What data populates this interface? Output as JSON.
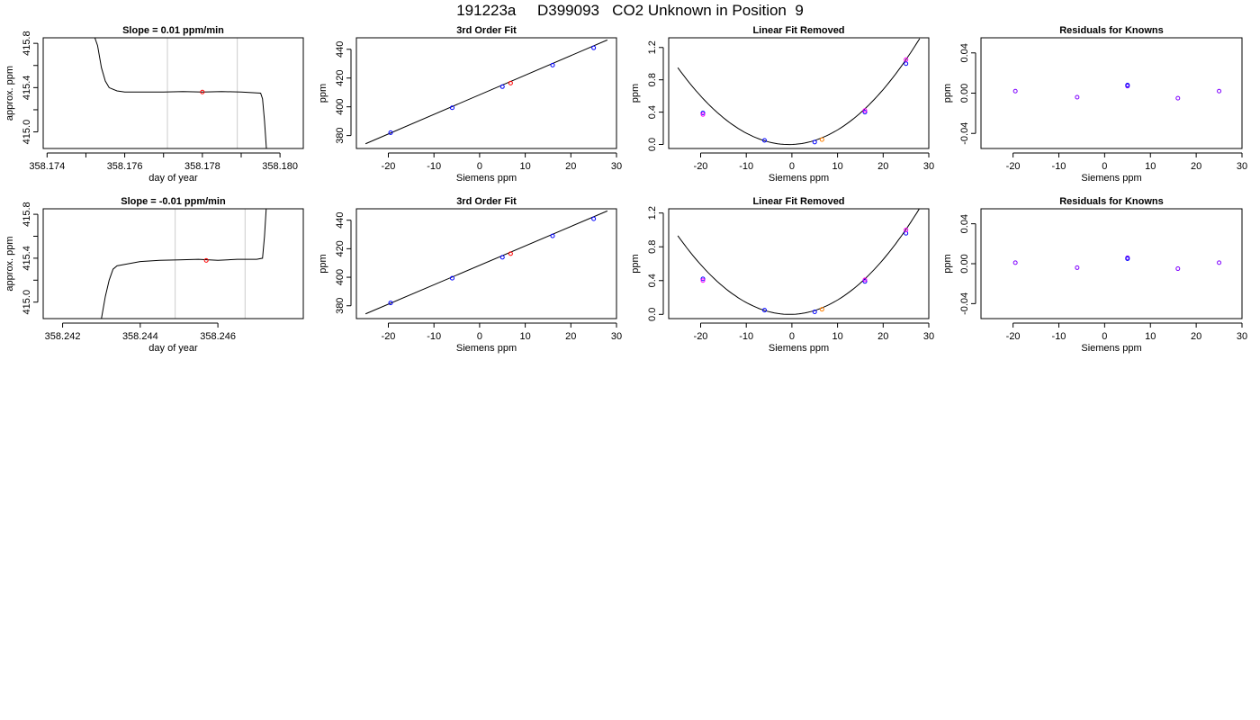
{
  "page": {
    "title": "191223a     D399093   CO2 Unknown in Position  9"
  },
  "chart_data": [
    {
      "type": "line",
      "title": "Slope =  0.01  ppm/min",
      "xlabel": "day of year",
      "ylabel": "approx. ppm",
      "xlim": [
        358.1739,
        358.1806
      ],
      "ylim": [
        414.85,
        415.85
      ],
      "xticks": [
        358.174,
        358.175,
        358.176,
        358.177,
        358.178,
        358.179,
        358.18
      ],
      "xtick_labels": [
        "358.174",
        "",
        "358.176",
        "",
        "358.178",
        "",
        "358.180"
      ],
      "yticks": [
        415.0,
        415.2,
        415.4,
        415.6,
        415.8
      ],
      "ytick_labels": [
        "415.0",
        "",
        "415.4",
        "",
        "415.8"
      ],
      "vlines": [
        358.1771,
        358.1789
      ],
      "series": [
        {
          "values": [
            [
              358.1752,
              415.88
            ],
            [
              358.1753,
              415.78
            ],
            [
              358.1754,
              415.58
            ],
            [
              358.1755,
              415.46
            ],
            [
              358.1756,
              415.4
            ],
            [
              358.1758,
              415.37
            ],
            [
              358.176,
              415.36
            ],
            [
              358.1765,
              415.36
            ],
            [
              358.177,
              415.36
            ],
            [
              358.1775,
              415.365
            ],
            [
              358.178,
              415.36
            ],
            [
              358.1785,
              415.365
            ],
            [
              358.179,
              415.36
            ],
            [
              358.1795,
              415.35
            ],
            [
              358.17955,
              415.3
            ],
            [
              358.1796,
              415.1
            ],
            [
              358.17965,
              414.85
            ]
          ]
        }
      ],
      "points": [
        {
          "x": 358.178,
          "y": 415.36,
          "color": "#ff0000"
        }
      ]
    },
    {
      "type": "scatter",
      "title": "3rd Order Fit",
      "xlabel": "Siemens ppm",
      "ylabel": "ppm",
      "xlim": [
        -27,
        30
      ],
      "ylim": [
        371,
        448
      ],
      "xticks": [
        -20,
        -10,
        0,
        10,
        20,
        30
      ],
      "xtick_labels": [
        "-20",
        "-10",
        "0",
        "10",
        "20",
        "30"
      ],
      "yticks": [
        380,
        400,
        420,
        440
      ],
      "ytick_labels": [
        "380",
        "400",
        "420",
        "440"
      ],
      "fit_line": [
        [
          -25,
          374.3
        ],
        [
          28,
          446.5
        ]
      ],
      "points": [
        {
          "x": -19.5,
          "y": 382,
          "color": "#0000ff"
        },
        {
          "x": -6,
          "y": 399.3,
          "color": "#0000ff"
        },
        {
          "x": 5,
          "y": 414,
          "color": "#0000ff"
        },
        {
          "x": 16,
          "y": 429,
          "color": "#0000ff"
        },
        {
          "x": 25,
          "y": 441,
          "color": "#0000ff"
        },
        {
          "x": 6.8,
          "y": 416.5,
          "color": "#ff0000"
        }
      ]
    },
    {
      "type": "scatter",
      "title": "Linear Fit Removed",
      "xlabel": "Siemens ppm",
      "ylabel": "ppm",
      "xlim": [
        -27,
        30
      ],
      "ylim": [
        -0.05,
        1.32
      ],
      "xticks": [
        -20,
        -10,
        0,
        10,
        20,
        30
      ],
      "xtick_labels": [
        "-20",
        "-10",
        "0",
        "10",
        "20",
        "30"
      ],
      "yticks": [
        0.0,
        0.4,
        0.8,
        1.2
      ],
      "ytick_labels": [
        "0.0",
        "0.4",
        "0.8",
        "1.2"
      ],
      "curve": {
        "a": 0.0016,
        "b": 0.002,
        "c": 0.0,
        "x_from": -25,
        "x_to": 28
      },
      "points": [
        {
          "x": -19.5,
          "y": 0.39,
          "color": "#0000ff"
        },
        {
          "x": -19.5,
          "y": 0.37,
          "color": "#ff00ff"
        },
        {
          "x": -6,
          "y": 0.05,
          "color": "#0000ff"
        },
        {
          "x": 5,
          "y": 0.03,
          "color": "#0000ff"
        },
        {
          "x": 16,
          "y": 0.4,
          "color": "#0000ff"
        },
        {
          "x": 16,
          "y": 0.42,
          "color": "#ff00ff"
        },
        {
          "x": 25,
          "y": 1.0,
          "color": "#0000ff"
        },
        {
          "x": 25,
          "y": 1.05,
          "color": "#ff00ff"
        },
        {
          "x": 6.6,
          "y": 0.06,
          "color": "#ff7f00"
        }
      ]
    },
    {
      "type": "scatter",
      "title": "Residuals for Knowns",
      "xlabel": "Siemens ppm",
      "ylabel": "ppm",
      "xlim": [
        -27,
        30
      ],
      "ylim": [
        -0.055,
        0.055
      ],
      "xticks": [
        -20,
        -10,
        0,
        10,
        20,
        30
      ],
      "xtick_labels": [
        "-20",
        "-10",
        "0",
        "10",
        "20",
        "30"
      ],
      "yticks": [
        -0.04,
        0.0,
        0.04
      ],
      "ytick_labels": [
        "-0.04",
        "0.00",
        "0.04"
      ],
      "points": [
        {
          "x": -19.5,
          "y": 0.002,
          "color": "#7f00ff"
        },
        {
          "x": -6,
          "y": -0.004,
          "color": "#7f00ff"
        },
        {
          "x": 5,
          "y": 0.007,
          "color": "#7f00ff"
        },
        {
          "x": 5,
          "y": 0.008,
          "color": "#0000ff"
        },
        {
          "x": 16,
          "y": -0.005,
          "color": "#7f00ff"
        },
        {
          "x": 25,
          "y": 0.002,
          "color": "#7f00ff"
        }
      ]
    },
    {
      "type": "line",
      "title": "Slope =  -0.01  ppm/min",
      "xlabel": "day of year",
      "ylabel": "approx. ppm",
      "xlim": [
        358.2415,
        358.2482
      ],
      "ylim": [
        414.85,
        415.85
      ],
      "xticks": [
        358.242,
        358.244,
        358.246
      ],
      "xtick_labels": [
        "358.242",
        "358.244",
        "358.246"
      ],
      "yticks": [
        415.0,
        415.2,
        415.4,
        415.6,
        415.8
      ],
      "ytick_labels": [
        "415.0",
        "",
        "415.4",
        "",
        "415.8"
      ],
      "vlines": [
        358.2449,
        358.2467
      ],
      "series": [
        {
          "values": [
            [
              358.243,
              414.85
            ],
            [
              358.2431,
              415.05
            ],
            [
              358.2432,
              415.2
            ],
            [
              358.2433,
              415.3
            ],
            [
              358.2434,
              415.33
            ],
            [
              358.2437,
              415.35
            ],
            [
              358.244,
              415.37
            ],
            [
              358.2445,
              415.38
            ],
            [
              358.245,
              415.385
            ],
            [
              358.2455,
              415.39
            ],
            [
              358.246,
              415.38
            ],
            [
              358.2465,
              415.39
            ],
            [
              358.247,
              415.39
            ],
            [
              358.24715,
              415.4
            ],
            [
              358.2472,
              415.6
            ],
            [
              358.24725,
              415.88
            ]
          ]
        }
      ],
      "points": [
        {
          "x": 358.2457,
          "y": 415.38,
          "color": "#ff0000"
        }
      ]
    },
    {
      "type": "scatter",
      "title": "3rd Order Fit",
      "xlabel": "Siemens ppm",
      "ylabel": "ppm",
      "xlim": [
        -27,
        30
      ],
      "ylim": [
        371,
        448
      ],
      "xticks": [
        -20,
        -10,
        0,
        10,
        20,
        30
      ],
      "xtick_labels": [
        "-20",
        "-10",
        "0",
        "10",
        "20",
        "30"
      ],
      "yticks": [
        380,
        400,
        420,
        440
      ],
      "ytick_labels": [
        "380",
        "400",
        "420",
        "440"
      ],
      "fit_line": [
        [
          -25,
          374.3
        ],
        [
          28,
          446.5
        ]
      ],
      "points": [
        {
          "x": -19.5,
          "y": 382,
          "color": "#0000ff"
        },
        {
          "x": -6,
          "y": 399.3,
          "color": "#0000ff"
        },
        {
          "x": 5,
          "y": 414,
          "color": "#0000ff"
        },
        {
          "x": 16,
          "y": 429,
          "color": "#0000ff"
        },
        {
          "x": 25,
          "y": 441,
          "color": "#0000ff"
        },
        {
          "x": 6.8,
          "y": 416.5,
          "color": "#ff0000"
        }
      ]
    },
    {
      "type": "scatter",
      "title": "Linear Fit Removed",
      "xlabel": "Siemens ppm",
      "ylabel": "ppm",
      "xlim": [
        -27,
        30
      ],
      "ylim": [
        -0.05,
        1.25
      ],
      "xticks": [
        -20,
        -10,
        0,
        10,
        20,
        30
      ],
      "xtick_labels": [
        "-20",
        "-10",
        "0",
        "10",
        "20",
        "30"
      ],
      "yticks": [
        0.0,
        0.4,
        0.8,
        1.2
      ],
      "ytick_labels": [
        "0.0",
        "0.4",
        "0.8",
        "1.2"
      ],
      "curve": {
        "a": 0.00155,
        "b": 0.0015,
        "c": 0.0,
        "x_from": -25,
        "x_to": 28
      },
      "points": [
        {
          "x": -19.5,
          "y": 0.42,
          "color": "#0000ff"
        },
        {
          "x": -19.5,
          "y": 0.4,
          "color": "#ff00ff"
        },
        {
          "x": -6,
          "y": 0.05,
          "color": "#0000ff"
        },
        {
          "x": 5,
          "y": 0.03,
          "color": "#0000ff"
        },
        {
          "x": 16,
          "y": 0.39,
          "color": "#0000ff"
        },
        {
          "x": 16,
          "y": 0.41,
          "color": "#ff00ff"
        },
        {
          "x": 25,
          "y": 0.96,
          "color": "#0000ff"
        },
        {
          "x": 25,
          "y": 1.0,
          "color": "#ff00ff"
        },
        {
          "x": 6.6,
          "y": 0.06,
          "color": "#ff7f00"
        }
      ]
    },
    {
      "type": "scatter",
      "title": "Residuals for Knowns",
      "xlabel": "Siemens ppm",
      "ylabel": "ppm",
      "xlim": [
        -27,
        30
      ],
      "ylim": [
        -0.055,
        0.055
      ],
      "xticks": [
        -20,
        -10,
        0,
        10,
        20,
        30
      ],
      "xtick_labels": [
        "-20",
        "-10",
        "0",
        "10",
        "20",
        "30"
      ],
      "yticks": [
        -0.04,
        0.0,
        0.04
      ],
      "ytick_labels": [
        "-0.04",
        "0.00",
        "0.04"
      ],
      "points": [
        {
          "x": -19.5,
          "y": 0.001,
          "color": "#7f00ff"
        },
        {
          "x": -6,
          "y": -0.004,
          "color": "#7f00ff"
        },
        {
          "x": 5,
          "y": 0.006,
          "color": "#7f00ff"
        },
        {
          "x": 5,
          "y": 0.005,
          "color": "#0000ff"
        },
        {
          "x": 16,
          "y": -0.005,
          "color": "#7f00ff"
        },
        {
          "x": 25,
          "y": 0.001,
          "color": "#7f00ff"
        }
      ]
    }
  ]
}
